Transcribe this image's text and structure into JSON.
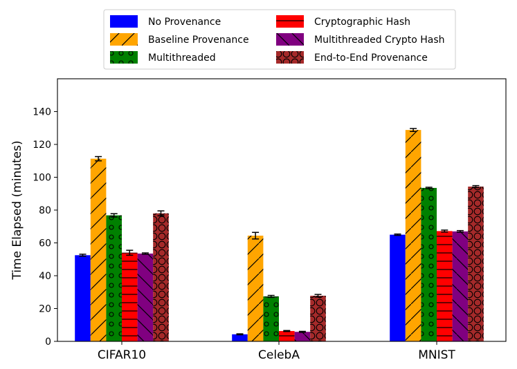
{
  "chart_data": {
    "type": "bar",
    "title": "",
    "xlabel": "",
    "ylabel": "Time Elapsed (minutes)",
    "ylim": [
      0,
      160
    ],
    "yticks": [
      0,
      20,
      40,
      60,
      80,
      100,
      120,
      140
    ],
    "categories": [
      "CIFAR10",
      "CelebA",
      "MNIST"
    ],
    "legend_position": "top-center",
    "series": [
      {
        "name": "No Provenance",
        "values": [
          52.5,
          4.3,
          65.0
        ],
        "errors": [
          0.6,
          0.3,
          0.4
        ],
        "color": "#0000ff",
        "hatch": "none"
      },
      {
        "name": "Baseline Provenance",
        "values": [
          111.3,
          64.4,
          128.8
        ],
        "errors": [
          1.3,
          2.0,
          0.9
        ],
        "color": "#ffa500",
        "hatch": "diagonal-slash"
      },
      {
        "name": "Multithreaded",
        "values": [
          76.8,
          27.4,
          93.5
        ],
        "errors": [
          1.0,
          0.6,
          0.4
        ],
        "color": "#008000",
        "hatch": "small-circles"
      },
      {
        "name": "Cryptographic Hash",
        "values": [
          54.0,
          6.3,
          67.2
        ],
        "errors": [
          1.5,
          0.3,
          0.6
        ],
        "color": "#ff0000",
        "hatch": "horizontal-lines"
      },
      {
        "name": "Multithreaded Crypto Hash",
        "values": [
          53.5,
          5.8,
          67.0
        ],
        "errors": [
          0.4,
          0.3,
          0.5
        ],
        "color": "#800080",
        "hatch": "back-diagonal"
      },
      {
        "name": "End-to-End Provenance",
        "values": [
          78.0,
          27.8,
          94.3
        ],
        "errors": [
          1.5,
          0.8,
          0.6
        ],
        "color": "#a52a2a",
        "hatch": "large-circles"
      }
    ]
  }
}
